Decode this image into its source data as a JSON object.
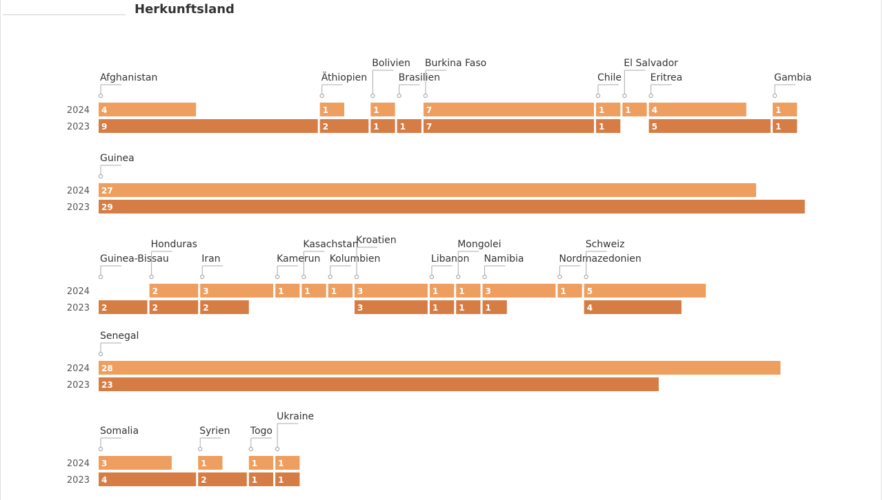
{
  "title": "Herkunftsland",
  "chart_data": {
    "type": "bar",
    "layout": "marimekko-style stacked horizontal bars, one block per country, paired years",
    "years": [
      "2024",
      "2023"
    ],
    "colors": {
      "2024": "#EE9E5E",
      "2023": "#D67D45"
    },
    "rows": [
      {
        "countries": [
          {
            "name": "Afghanistan",
            "v2024": 4,
            "v2023": 9
          },
          {
            "name": "Äthiopien",
            "v2024": 1,
            "v2023": 2
          },
          {
            "name": "Bolivien",
            "v2024": 1,
            "v2023": 1
          },
          {
            "name": "Brasilien",
            "v2024": null,
            "v2023": 1
          },
          {
            "name": "Burkina Faso",
            "v2024": 7,
            "v2023": 7
          },
          {
            "name": "Chile",
            "v2024": 1,
            "v2023": 1
          },
          {
            "name": "El Salvador",
            "v2024": 1,
            "v2023": null
          },
          {
            "name": "Eritrea",
            "v2024": 4,
            "v2023": 5
          },
          {
            "name": "Gambia",
            "v2024": 1,
            "v2023": 1
          }
        ]
      },
      {
        "countries": [
          {
            "name": "Guinea",
            "v2024": 27,
            "v2023": 29
          }
        ]
      },
      {
        "countries": [
          {
            "name": "Guinea-Bissau",
            "v2024": null,
            "v2023": 2
          },
          {
            "name": "Honduras",
            "v2024": 2,
            "v2023": 2
          },
          {
            "name": "Iran",
            "v2024": 3,
            "v2023": 2
          },
          {
            "name": "Kamerun",
            "v2024": 1,
            "v2023": null
          },
          {
            "name": "Kasachstan",
            "v2024": 1,
            "v2023": null
          },
          {
            "name": "Kolumbien",
            "v2024": 1,
            "v2023": null
          },
          {
            "name": "Kroatien",
            "v2024": 3,
            "v2023": 3
          },
          {
            "name": "Libanon",
            "v2024": 1,
            "v2023": 1
          },
          {
            "name": "Mongolei",
            "v2024": 1,
            "v2023": 1
          },
          {
            "name": "Namibia",
            "v2024": 3,
            "v2023": 1
          },
          {
            "name": "Nordmazedonien",
            "v2024": 1,
            "v2023": null
          },
          {
            "name": "Schweiz",
            "v2024": 5,
            "v2023": 4
          }
        ]
      },
      {
        "countries": [
          {
            "name": "Senegal",
            "v2024": 28,
            "v2023": 23
          }
        ]
      },
      {
        "countries": [
          {
            "name": "Somalia",
            "v2024": 3,
            "v2023": 4
          },
          {
            "name": "Syrien",
            "v2024": 1,
            "v2023": 2
          },
          {
            "name": "Togo",
            "v2024": 1,
            "v2023": 1
          },
          {
            "name": "Ukraine",
            "v2024": 1,
            "v2023": 1
          }
        ]
      }
    ]
  }
}
